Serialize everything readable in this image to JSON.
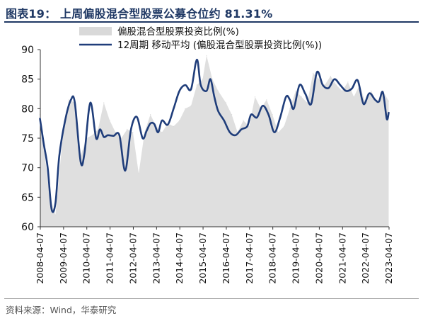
{
  "title": "图表19：  上周偏股混合型股票公募仓位约 81.31%",
  "source": "资料来源：Wind，华泰研究",
  "chart_data": {
    "type": "line",
    "title": "图表19：  上周偏股混合型股票公募仓位约 81.31%",
    "xlabel": "",
    "ylabel": "",
    "ylim": [
      60,
      90
    ],
    "yticks": [
      60,
      65,
      70,
      75,
      80,
      85,
      90
    ],
    "xlim": [
      "2008-04-07",
      "2023-04-07"
    ],
    "x_tick_labels": [
      "2008-04-07",
      "2009-04-07",
      "2010-04-07",
      "2011-04-07",
      "2012-04-07",
      "2013-04-07",
      "2014-04-07",
      "2015-04-07",
      "2016-04-07",
      "2017-04-07",
      "2018-04-07",
      "2019-04-07",
      "2020-04-07",
      "2021-04-07",
      "2022-04-07",
      "2023-04-07"
    ],
    "legend_position": "top",
    "grid": false,
    "latest_value": 81.31,
    "series": [
      {
        "name": "偏股混合型股票投资比例(%)",
        "style": "area",
        "color": "#d9d9d9",
        "x": [
          "2008-04",
          "2008-06",
          "2008-09",
          "2008-12",
          "2009-04",
          "2009-07",
          "2009-10",
          "2010-01",
          "2010-04",
          "2010-07",
          "2010-10",
          "2011-01",
          "2011-04",
          "2011-07",
          "2011-10",
          "2012-01",
          "2012-04",
          "2012-07",
          "2012-10",
          "2013-01",
          "2013-04",
          "2013-07",
          "2013-10",
          "2014-01",
          "2014-04",
          "2014-07",
          "2014-10",
          "2015-01",
          "2015-04",
          "2015-06",
          "2015-09",
          "2015-12",
          "2016-04",
          "2016-07",
          "2016-10",
          "2017-01",
          "2017-04",
          "2017-07",
          "2017-10",
          "2018-01",
          "2018-04",
          "2018-07",
          "2018-10",
          "2019-01",
          "2019-04",
          "2019-07",
          "2019-10",
          "2020-01",
          "2020-04",
          "2020-07",
          "2020-10",
          "2021-01",
          "2021-04",
          "2021-07",
          "2021-10",
          "2022-01",
          "2022-04",
          "2022-07",
          "2022-10",
          "2023-01",
          "2023-04"
        ],
        "y": [
          79,
          73.5,
          65,
          62,
          76,
          81.5,
          81,
          72,
          75,
          75.5,
          76.5,
          81,
          78,
          76,
          75,
          76.5,
          76,
          69,
          76,
          79,
          77,
          76,
          77.5,
          77,
          78,
          80,
          80.5,
          84,
          85,
          89,
          85,
          83,
          81,
          79,
          76,
          78,
          77,
          82,
          80,
          81.5,
          79,
          76,
          77,
          80,
          83,
          82,
          81,
          86,
          85,
          84,
          85.5,
          84,
          83,
          84.5,
          82,
          84,
          81,
          83,
          81,
          83,
          81.3
        ]
      },
      {
        "name": "12周期 移动平均 (偏股混合型股票投资比例(%))",
        "style": "line",
        "color": "#1f3d7a",
        "x": [
          "2008-04",
          "2008-06",
          "2008-08",
          "2008-10",
          "2008-12",
          "2009-02",
          "2009-05",
          "2009-08",
          "2009-10",
          "2010-01",
          "2010-03",
          "2010-06",
          "2010-09",
          "2010-11",
          "2011-01",
          "2011-03",
          "2011-06",
          "2011-09",
          "2011-12",
          "2012-03",
          "2012-06",
          "2012-09",
          "2012-11",
          "2013-01",
          "2013-03",
          "2013-05",
          "2013-07",
          "2013-10",
          "2014-01",
          "2014-04",
          "2014-07",
          "2014-10",
          "2015-01",
          "2015-03",
          "2015-06",
          "2015-08",
          "2015-10",
          "2015-12",
          "2016-03",
          "2016-06",
          "2016-09",
          "2016-12",
          "2017-03",
          "2017-05",
          "2017-08",
          "2017-11",
          "2018-02",
          "2018-05",
          "2018-08",
          "2018-11",
          "2019-01",
          "2019-03",
          "2019-06",
          "2019-09",
          "2019-12",
          "2020-03",
          "2020-06",
          "2020-09",
          "2020-12",
          "2021-03",
          "2021-06",
          "2021-09",
          "2021-12",
          "2022-03",
          "2022-06",
          "2022-09",
          "2022-11",
          "2023-01",
          "2023-03",
          "2023-04"
        ],
        "y": [
          78.3,
          74,
          70,
          63,
          64,
          72,
          78,
          81.5,
          81,
          71,
          72.5,
          81,
          75,
          76.5,
          75.2,
          75.5,
          75.4,
          75.5,
          69.5,
          76.5,
          78.6,
          75,
          76.2,
          77.5,
          77.4,
          76,
          78,
          77.3,
          80,
          83,
          84,
          83.3,
          88.3,
          84,
          83,
          85,
          82,
          79.6,
          78,
          76,
          75.5,
          76.5,
          77,
          79,
          78.5,
          80.5,
          79,
          76,
          78.5,
          82,
          81.5,
          80,
          84,
          82.5,
          80.8,
          86.2,
          84,
          83.5,
          85,
          84,
          83,
          83.4,
          84.8,
          80.8,
          82.6,
          81.5,
          81.2,
          82.8,
          78.3,
          79.3
        ]
      }
    ]
  }
}
